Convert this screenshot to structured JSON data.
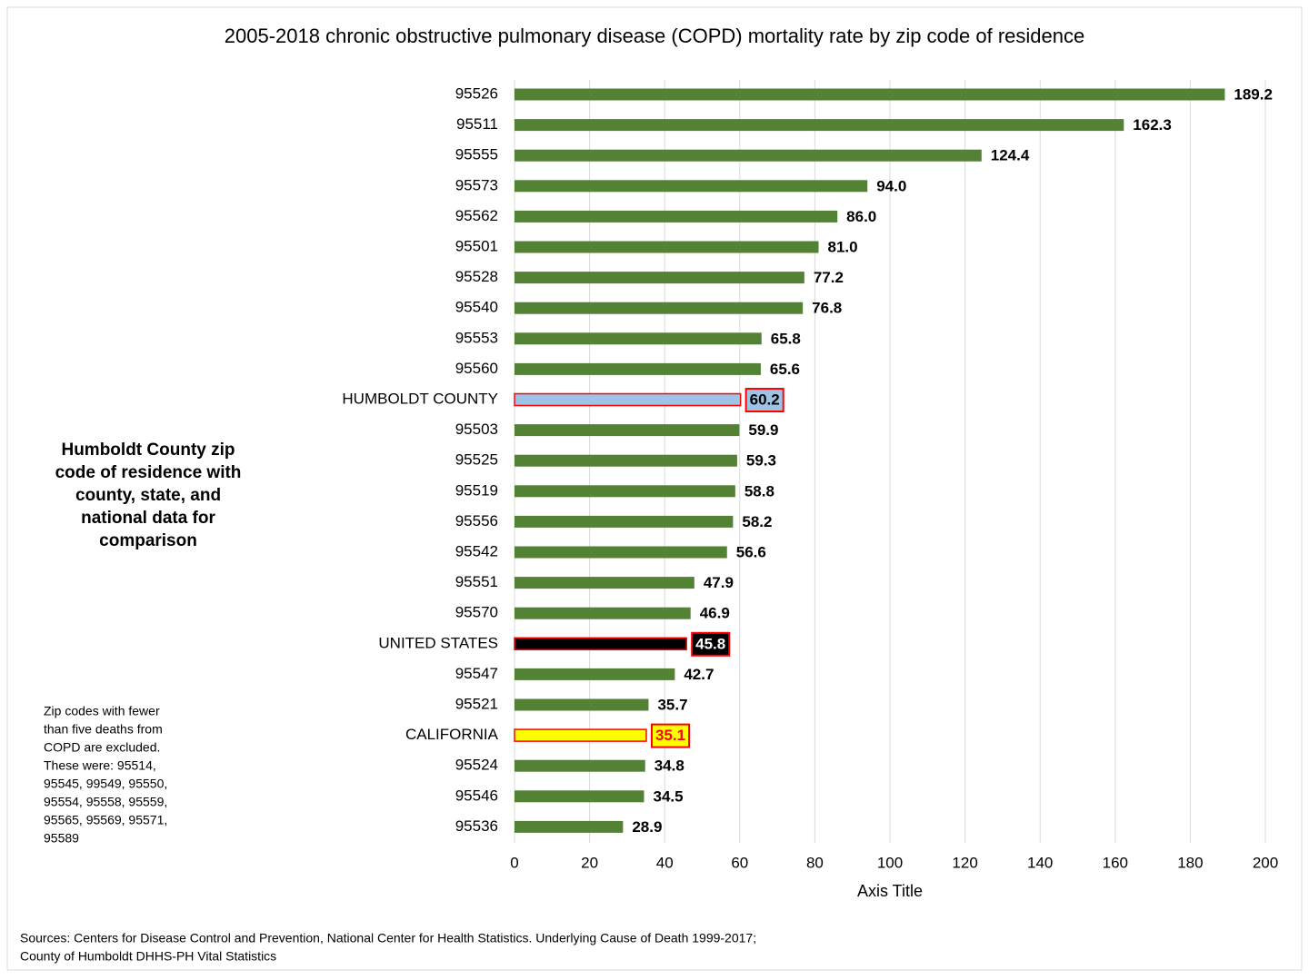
{
  "chart_data": {
    "type": "bar",
    "orientation": "horizontal",
    "title": "2005-2018 chronic obstructive pulmonary disease (COPD) mortality rate by zip code of residence",
    "x_label": "Axis Title",
    "side_note": [
      "Humboldt County zip",
      "code of residence with",
      "county, state, and",
      "national data for",
      "comparison"
    ],
    "exclusion_note": [
      "Zip codes with fewer",
      "than five deaths from",
      "COPD are excluded.",
      "These were:  95514,",
      "95545, 99549, 95550,",
      "95554, 95558, 95559,",
      "95565, 95569, 95571,",
      "95589"
    ],
    "sources": [
      "Sources: Centers for Disease Control and Prevention, National Center for Health Statistics. Underlying Cause of Death 1999-2017;",
      "County of Humboldt  DHHS-PH Vital Statistics"
    ],
    "categories": [
      "95526",
      "95511",
      "95555",
      "95573",
      "95562",
      "95501",
      "95528",
      "95540",
      "95553",
      "95560",
      "HUMBOLDT COUNTY",
      "95503",
      "95525",
      "95519",
      "95556",
      "95542",
      "95551",
      "95570",
      "UNITED STATES",
      "95547",
      "95521",
      "CALIFORNIA",
      "95524",
      "95546",
      "95536"
    ],
    "values": [
      189.2,
      162.3,
      124.4,
      94,
      86,
      81,
      77.2,
      76.8,
      65.8,
      65.6,
      60.2,
      59.9,
      59.3,
      58.8,
      58.2,
      56.6,
      47.9,
      46.9,
      45.8,
      42.7,
      35.7,
      35.1,
      34.8,
      34.5,
      28.9
    ],
    "value_labels": [
      "189.2",
      "162.3",
      "124.4",
      "94.0",
      "86.0",
      "81.0",
      "77.2",
      "76.8",
      "65.8",
      "65.6",
      "60.2",
      "59.9",
      "59.3",
      "58.8",
      "58.2",
      "56.6",
      "47.9",
      "46.9",
      "45.8",
      "42.7",
      "35.7",
      "35.1",
      "34.8",
      "34.5",
      "28.9"
    ],
    "colors": [
      "#548235",
      "#548235",
      "#548235",
      "#548235",
      "#548235",
      "#548235",
      "#548235",
      "#548235",
      "#548235",
      "#548235",
      "#9dc3e6",
      "#548235",
      "#548235",
      "#548235",
      "#548235",
      "#548235",
      "#548235",
      "#548235",
      "#000000",
      "#548235",
      "#548235",
      "#ffff00",
      "#548235",
      "#548235",
      "#548235"
    ],
    "highlight_edge": "#ff0000",
    "highlighted": [
      "HUMBOLDT COUNTY",
      "UNITED STATES",
      "CALIFORNIA"
    ],
    "highlight_label_colors": [
      "#000000",
      "#ffffff",
      "#ff0000"
    ],
    "xlim": [
      0,
      200
    ],
    "xticks": [
      0,
      20,
      40,
      60,
      80,
      100,
      120,
      140,
      160,
      180,
      200
    ],
    "grid": true
  }
}
